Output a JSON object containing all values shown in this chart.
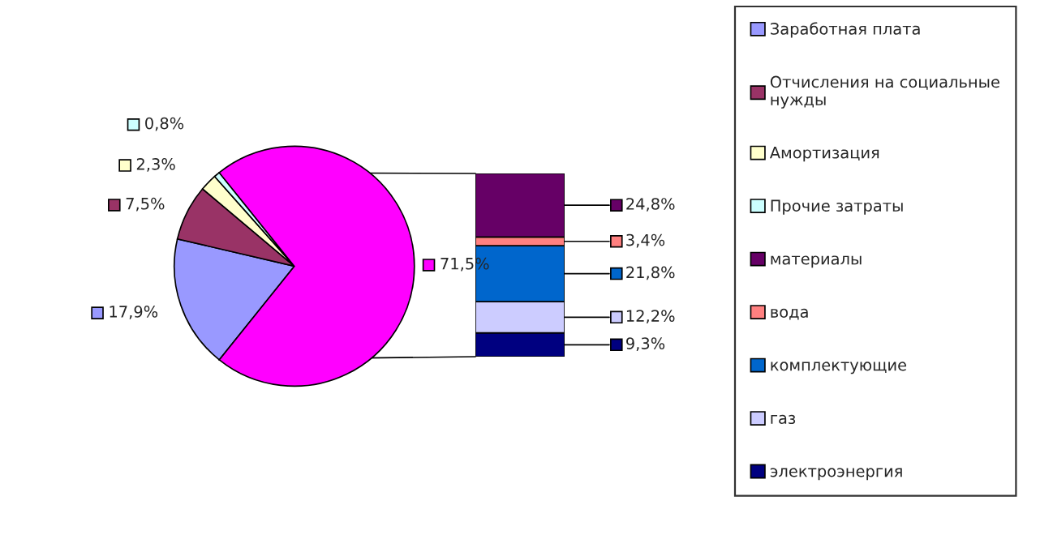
{
  "chart_data": [
    {
      "type": "pie",
      "categories": [
        "Заработная плата",
        "Отчисления на социальные нужды",
        "Амортизация",
        "Прочие затраты",
        null
      ],
      "values": [
        17.9,
        7.5,
        2.3,
        0.8,
        71.5
      ],
      "colors": [
        "#9999ff",
        "#993366",
        "#ffffcc",
        "#ccffff",
        "#ff00ff"
      ],
      "value_labels": [
        "17,9%",
        "7,5%",
        "2,3%",
        "0,8%",
        "71,5%"
      ],
      "legend": "right"
    },
    {
      "type": "bar",
      "stacked": true,
      "categories": [
        null
      ],
      "legend": "right",
      "series": [
        {
          "name": "электроэнергия",
          "color": "#000080",
          "values": [
            9.3
          ],
          "value_labels": [
            "9,3%"
          ]
        },
        {
          "name": "газ",
          "color": "#ccccff",
          "values": [
            12.2
          ],
          "value_labels": [
            "12,2%"
          ]
        },
        {
          "name": "комплектующие",
          "color": "#0066cc",
          "values": [
            21.8
          ],
          "value_labels": [
            "21,8%"
          ]
        },
        {
          "name": "вода",
          "color": "#ff8080",
          "values": [
            3.4
          ],
          "value_labels": [
            "3,4%"
          ]
        },
        {
          "name": "материалы",
          "color": "#660066",
          "values": [
            24.8
          ],
          "value_labels": [
            "24,8%"
          ]
        }
      ]
    }
  ]
}
